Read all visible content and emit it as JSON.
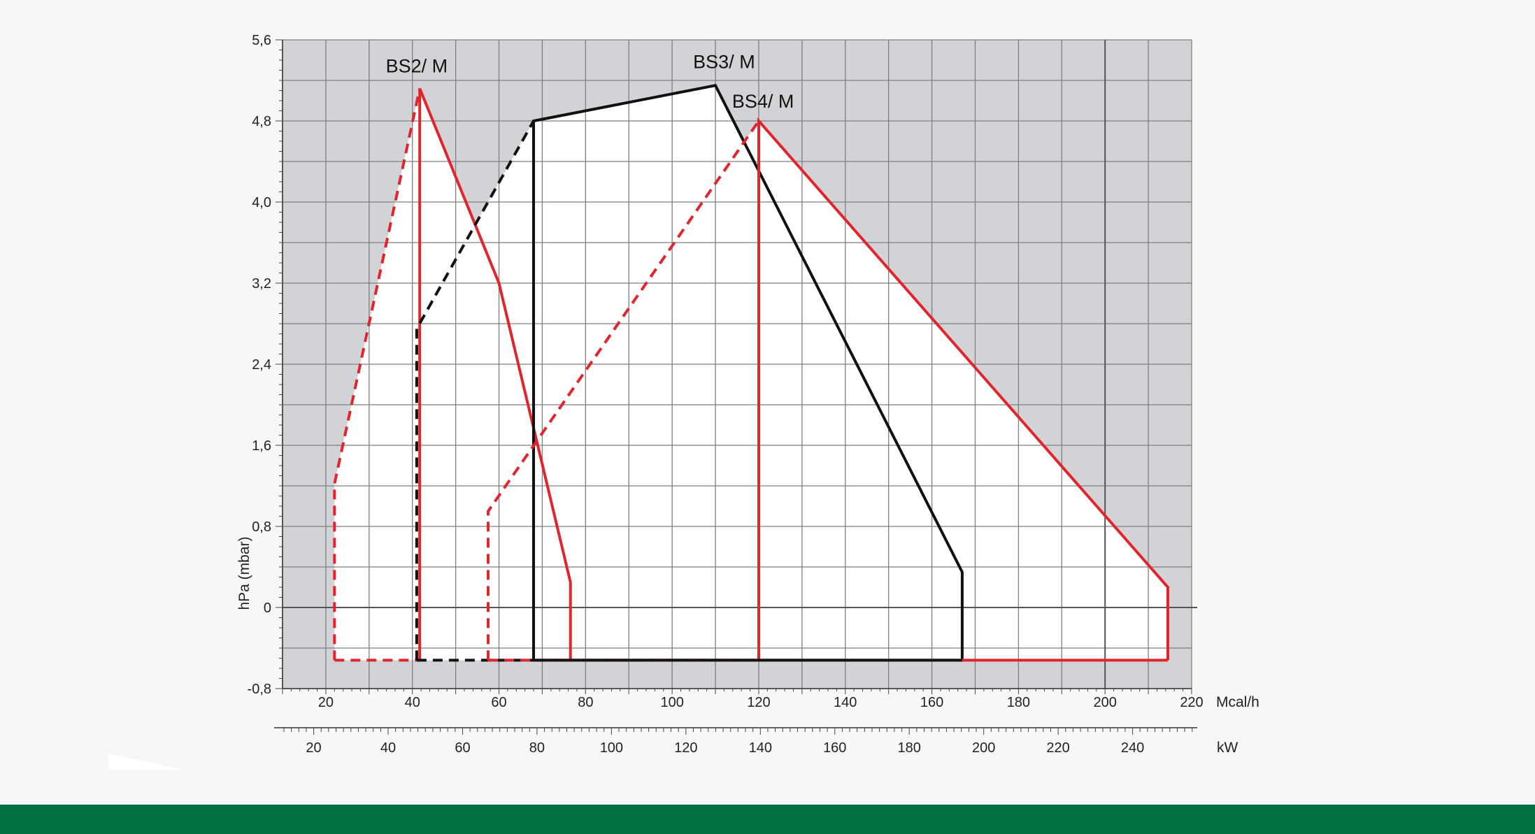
{
  "chart_data": {
    "type": "line",
    "title": "",
    "ylabel": "hPa (mbar)",
    "ylim": [
      -0.8,
      5.6
    ],
    "yticks": [
      "5,6",
      "4,8",
      "4,0",
      "3,2",
      "2,4",
      "1,6",
      "0,8",
      "0",
      "-0,8"
    ],
    "xlim_mcal": [
      10,
      220
    ],
    "xaxis_primary": {
      "unit": "Mcal/h",
      "ticks": [
        "20",
        "40",
        "60",
        "80",
        "100",
        "120",
        "140",
        "160",
        "180",
        "200",
        "220"
      ],
      "tick_values": [
        20,
        40,
        60,
        80,
        100,
        120,
        140,
        160,
        180,
        200,
        220
      ]
    },
    "xaxis_secondary": {
      "unit": "kW",
      "ticks": [
        "20",
        "40",
        "60",
        "80",
        "100",
        "120",
        "140",
        "160",
        "180",
        "200",
        "220",
        "240"
      ],
      "tick_values": [
        20,
        40,
        60,
        80,
        100,
        120,
        140,
        160,
        180,
        200,
        220,
        240
      ]
    },
    "grid": true,
    "series": [
      {
        "name": "BS2/ M",
        "color": "#e0262c",
        "label_at": [
          41,
          5.28
        ],
        "solid": [
          [
            41.7,
            -0.52
          ],
          [
            41.7,
            5.12
          ],
          [
            60,
            3.2
          ],
          [
            76.5,
            0.25
          ],
          [
            76.5,
            -0.52
          ]
        ],
        "dashed": [
          [
            22,
            -0.52
          ],
          [
            22,
            1.22
          ],
          [
            41.7,
            5.12
          ]
        ],
        "bottom_dashed": [
          [
            22,
            -0.52
          ],
          [
            41.7,
            -0.52
          ]
        ]
      },
      {
        "name": "BS3/ M",
        "color": "#111111",
        "label_at": [
          112,
          5.32
        ],
        "solid": [
          [
            68,
            -0.52
          ],
          [
            68,
            4.8
          ],
          [
            110,
            5.15
          ],
          [
            167,
            0.35
          ],
          [
            167,
            -0.52
          ]
        ],
        "dashed": [
          [
            41,
            -0.52
          ],
          [
            41,
            2.75
          ],
          [
            68,
            4.8
          ]
        ],
        "bottom_dashed": [
          [
            41,
            -0.52
          ],
          [
            68,
            -0.52
          ]
        ]
      },
      {
        "name": "BS4/ M",
        "color": "#e0262c",
        "label_at": [
          121,
          4.93
        ],
        "solid": [
          [
            120,
            -0.52
          ],
          [
            120,
            4.8
          ],
          [
            214.5,
            0.2
          ],
          [
            214.5,
            -0.52
          ]
        ],
        "dashed": [
          [
            57.5,
            -0.52
          ],
          [
            57.5,
            0.95
          ],
          [
            120,
            4.8
          ]
        ],
        "bottom_dashed": [
          [
            57.5,
            -0.52
          ],
          [
            120,
            -0.52
          ]
        ]
      }
    ]
  }
}
